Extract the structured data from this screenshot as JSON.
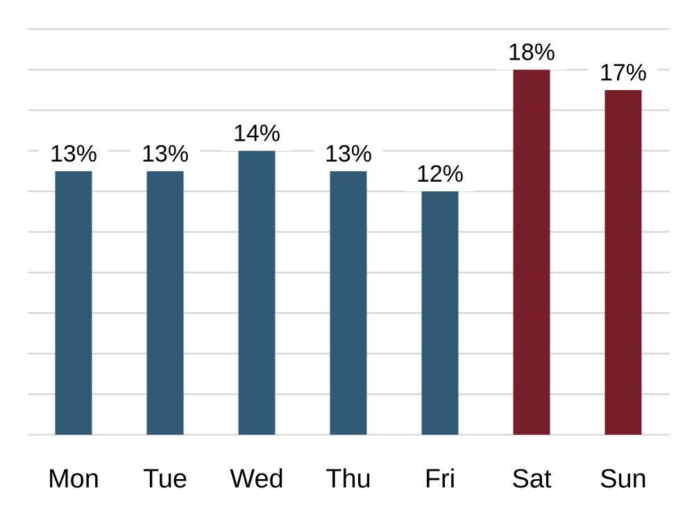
{
  "chart_data": {
    "type": "bar",
    "categories": [
      "Mon",
      "Tue",
      "Wed",
      "Thu",
      "Fri",
      "Sat",
      "Sun"
    ],
    "values": [
      13,
      13,
      14,
      13,
      12,
      18,
      17
    ],
    "value_labels": [
      "13%",
      "13%",
      "14%",
      "13%",
      "12%",
      "18%",
      "17%"
    ],
    "title": "",
    "xlabel": "",
    "ylabel": "",
    "ylim": [
      0,
      20
    ],
    "grid": true,
    "y_tick_step": 2,
    "y_axis_labels_shown": false,
    "legend": "none",
    "colors": {
      "weekday": "#315A74",
      "weekend": "#771F28",
      "grid": "#D9D9D9"
    },
    "bar_colors": [
      "#315A74",
      "#315A74",
      "#315A74",
      "#315A74",
      "#315A74",
      "#771F28",
      "#771F28"
    ]
  }
}
